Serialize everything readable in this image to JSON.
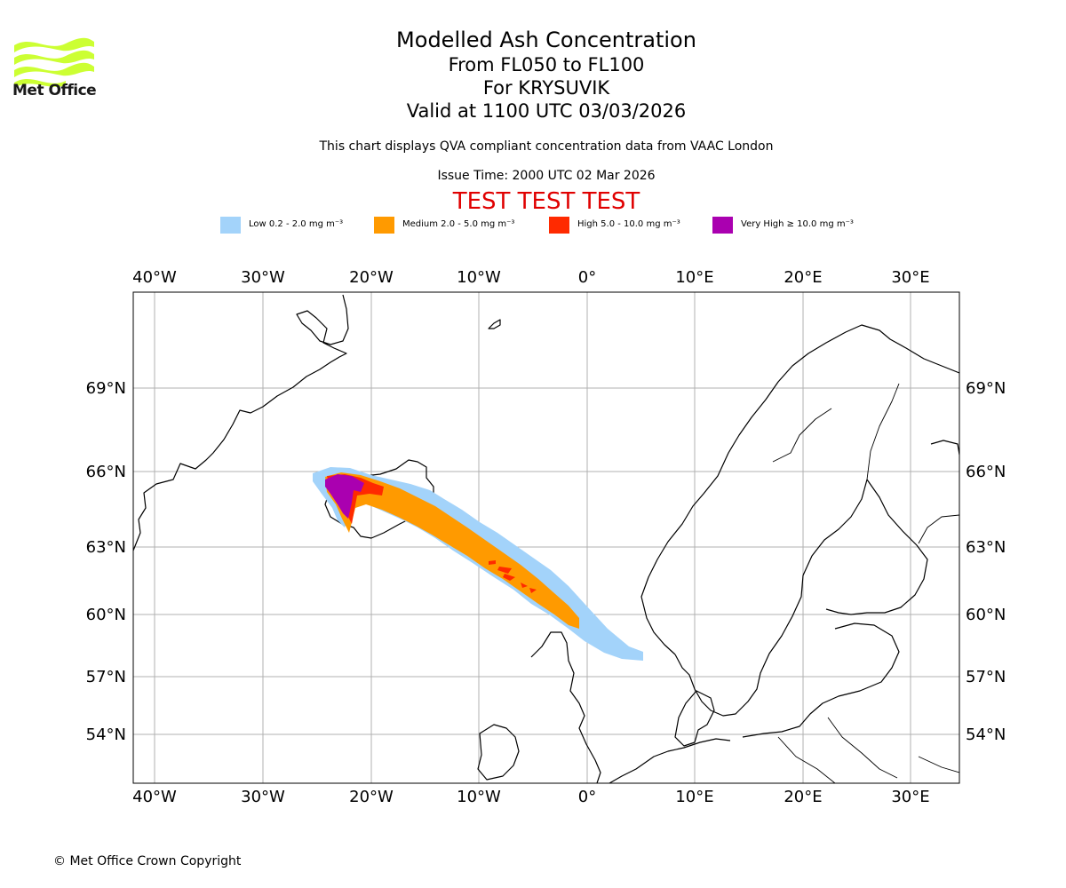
{
  "header": {
    "logo_text": "Met Office",
    "title": "Modelled Ash Concentration",
    "level_range": "From FL050 to FL100",
    "volcano": "For KRYSUVIK",
    "valid_time": "Valid at 1100 UTC 03/03/2026",
    "description": "This chart displays QVA compliant concentration data from VAAC London",
    "issue_time": "Issue Time: 2000 UTC 02 Mar 2026",
    "test_banner": "TEST TEST TEST"
  },
  "legend": [
    {
      "label": "Low 0.2 - 2.0 mg m⁻³",
      "color": "#a3d3fa"
    },
    {
      "label": "Medium 2.0 - 5.0 mg m⁻³",
      "color": "#ff9a00"
    },
    {
      "label": "High 5.0 - 10.0 mg m⁻³",
      "color": "#ff2a00"
    },
    {
      "label": "Very High ≥ 10.0 mg m⁻³",
      "color": "#aa00b0"
    }
  ],
  "map": {
    "lon_labels": [
      "40°W",
      "30°W",
      "20°W",
      "10°W",
      "0°",
      "10°E",
      "20°E",
      "30°E"
    ],
    "lat_labels": [
      "69°N",
      "66°N",
      "63°N",
      "60°N",
      "57°N",
      "54°N"
    ],
    "lon_range": [
      -42,
      34.5
    ],
    "lat_range": [
      51.6,
      72.8
    ],
    "colors": {
      "grid": "#b0b0b0",
      "coast": "#000000",
      "logo": "#ccff33"
    }
  },
  "footer": {
    "copyright": "© Met Office Crown Copyright"
  }
}
